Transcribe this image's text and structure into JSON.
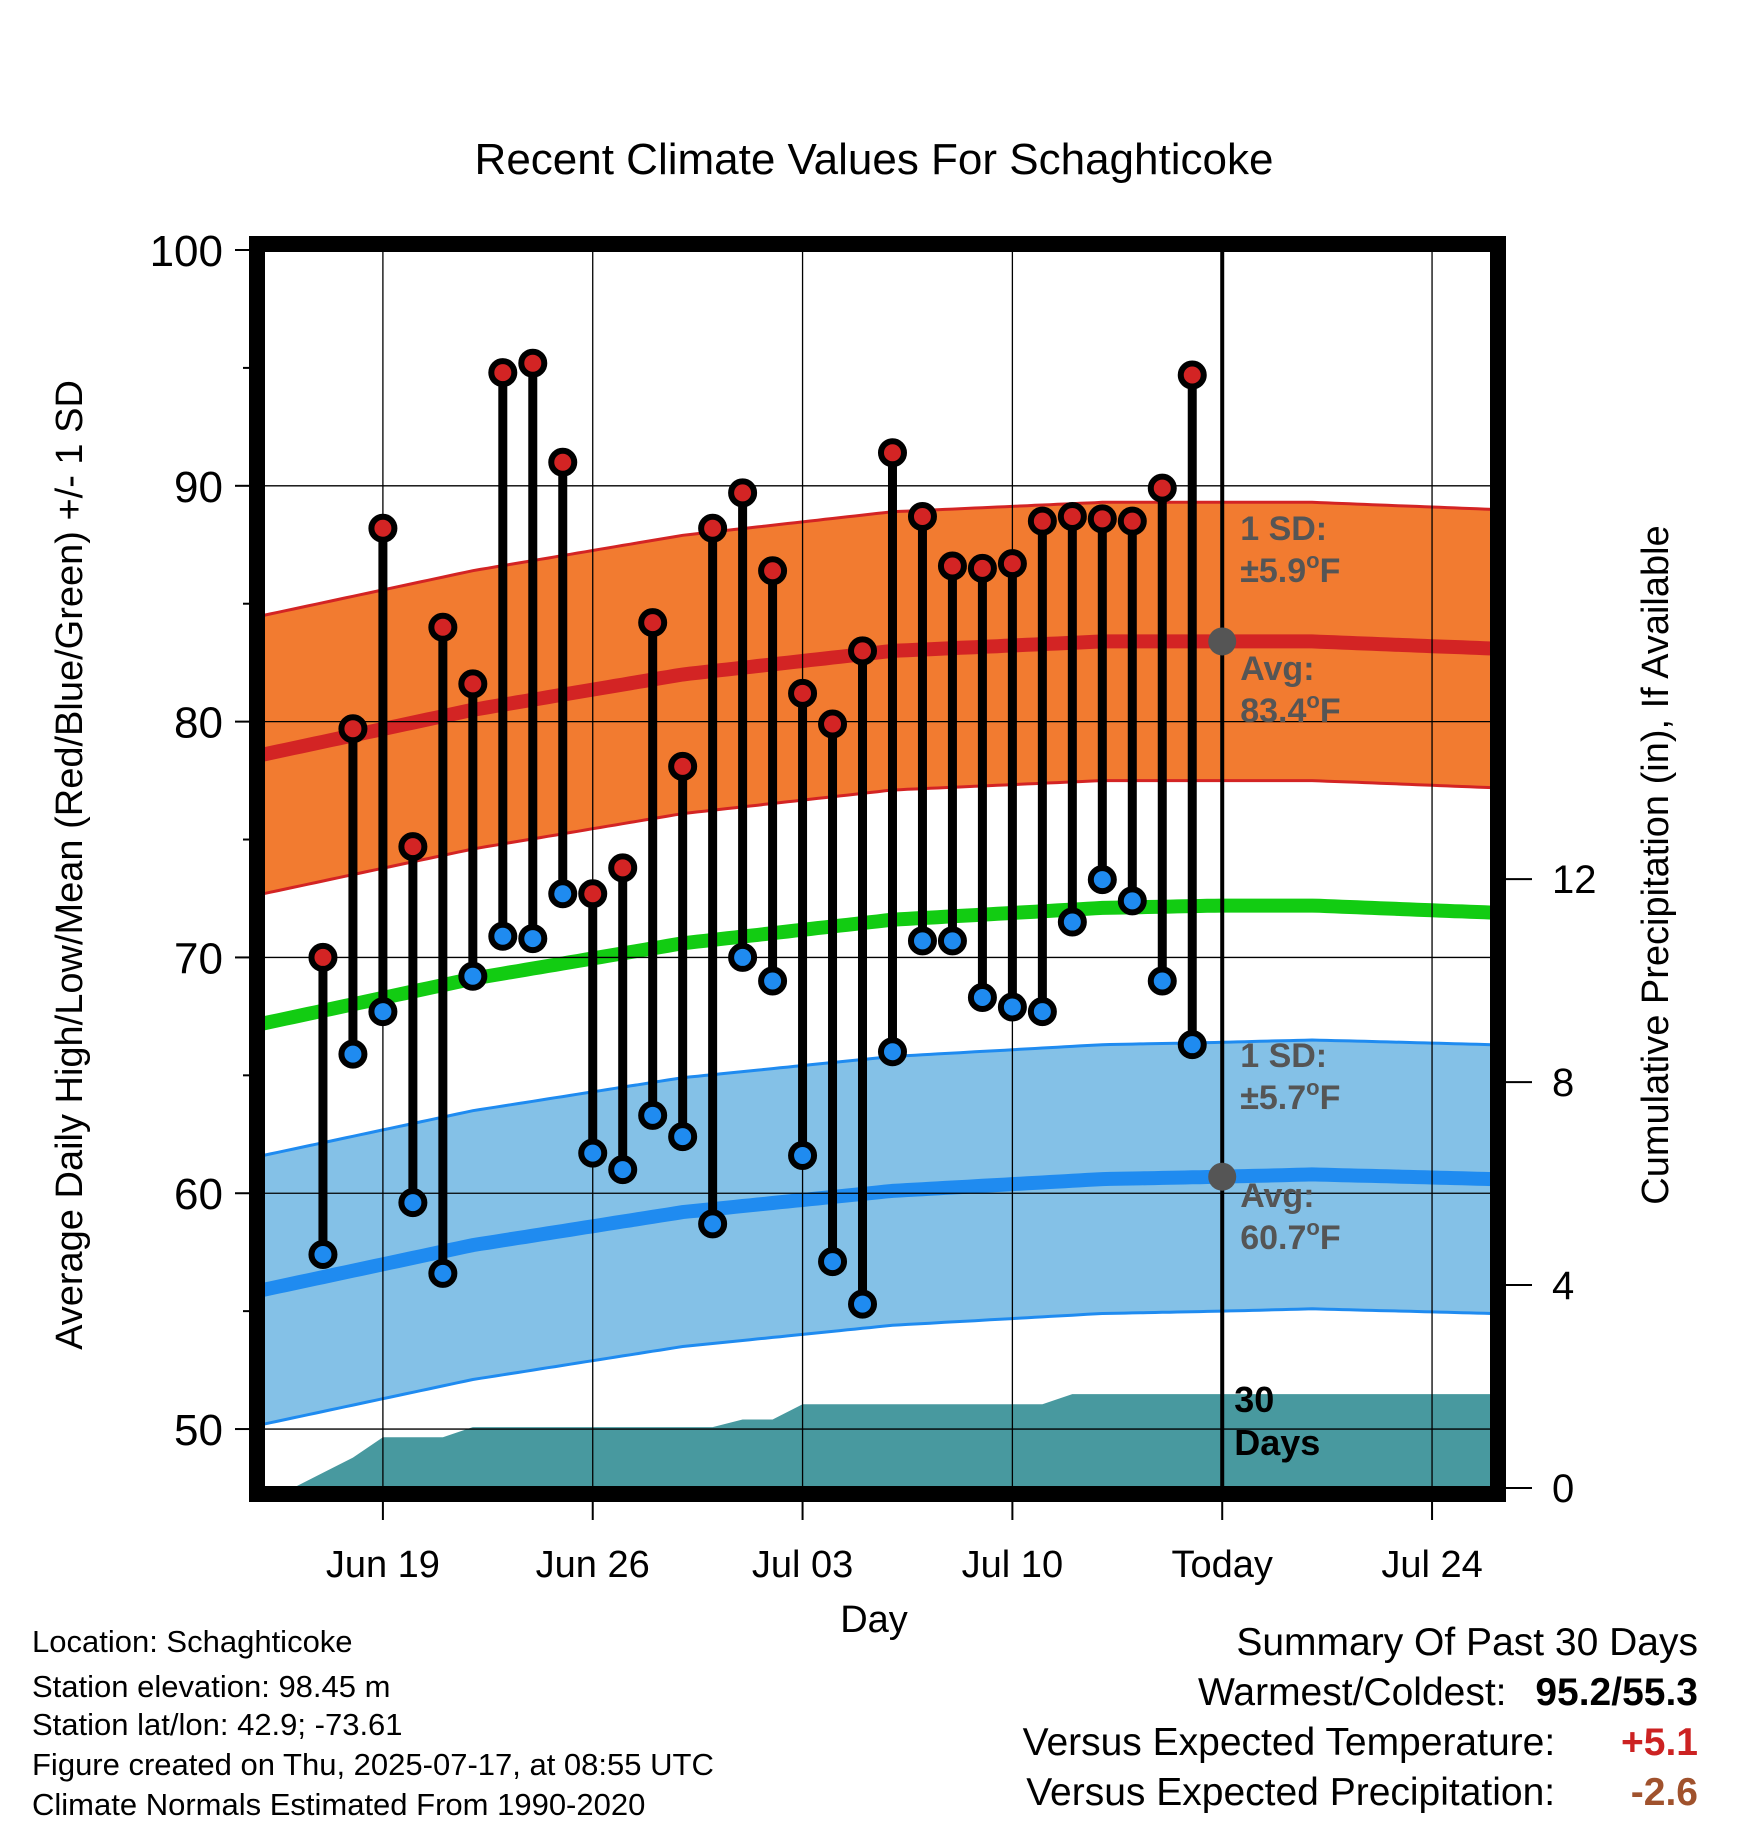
{
  "title": "Recent Climate Values For Schaghticoke",
  "chart_data": {
    "type": "line",
    "title": "Recent Climate Values For Schaghticoke",
    "xlabel": "Day",
    "ylabel": "Average Daily High/Low/Mean (Red/Blue/Green) +/- 1 SD",
    "y2label": "Cumulative Precipitation (in), If Available",
    "ylim": [
      47.5,
      100
    ],
    "y2lim": [
      0,
      24.4
    ],
    "yticks": [
      50,
      60,
      70,
      80,
      90,
      100
    ],
    "y2ticks": [
      0,
      4,
      8,
      12
    ],
    "xlim": [
      "2025-06-15",
      "2025-07-26"
    ],
    "xticks": [
      {
        "date": "2025-06-19",
        "label": "Jun 19"
      },
      {
        "date": "2025-06-26",
        "label": "Jun 26"
      },
      {
        "date": "2025-07-03",
        "label": "Jul 03"
      },
      {
        "date": "2025-07-10",
        "label": "Jul 10"
      },
      {
        "date": "2025-07-17",
        "label": "Today"
      },
      {
        "date": "2025-07-24",
        "label": "Jul 24"
      }
    ],
    "grid": true,
    "today": "2025-07-17",
    "dates": [
      "2025-06-17",
      "2025-06-18",
      "2025-06-19",
      "2025-06-20",
      "2025-06-21",
      "2025-06-22",
      "2025-06-23",
      "2025-06-24",
      "2025-06-25",
      "2025-06-26",
      "2025-06-27",
      "2025-06-28",
      "2025-06-29",
      "2025-06-30",
      "2025-07-01",
      "2025-07-02",
      "2025-07-03",
      "2025-07-04",
      "2025-07-05",
      "2025-07-06",
      "2025-07-07",
      "2025-07-08",
      "2025-07-09",
      "2025-07-10",
      "2025-07-11",
      "2025-07-12",
      "2025-07-13",
      "2025-07-14",
      "2025-07-15",
      "2025-07-16"
    ],
    "series": [
      {
        "name": "High",
        "color": "#cc2222",
        "values": [
          70.0,
          79.7,
          88.2,
          74.7,
          84.0,
          81.6,
          94.8,
          95.2,
          91.0,
          72.7,
          73.8,
          84.2,
          78.1,
          88.2,
          89.7,
          86.4,
          81.2,
          79.9,
          83.0,
          91.4,
          88.7,
          86.6,
          86.5,
          86.7,
          88.5,
          88.7,
          88.6,
          88.5,
          89.9,
          94.7
        ]
      },
      {
        "name": "Low",
        "color": "#2a90ee",
        "values": [
          57.4,
          65.9,
          67.7,
          59.6,
          56.6,
          69.2,
          70.9,
          70.8,
          72.7,
          61.7,
          61.0,
          63.3,
          62.4,
          58.7,
          70.0,
          69.0,
          61.6,
          57.1,
          55.3,
          66.0,
          70.7,
          70.7,
          68.3,
          67.9,
          67.7,
          71.5,
          73.3,
          72.4,
          69.0,
          66.3
        ]
      }
    ],
    "normals": {
      "dates": [
        "2025-06-15",
        "2025-06-22",
        "2025-06-29",
        "2025-07-06",
        "2025-07-13",
        "2025-07-17",
        "2025-07-20",
        "2025-07-26"
      ],
      "high_avg": [
        78.6,
        80.5,
        82.0,
        83.0,
        83.4,
        83.4,
        83.4,
        83.1
      ],
      "high_sd": 5.9,
      "low_avg": [
        55.9,
        57.8,
        59.2,
        60.1,
        60.6,
        60.7,
        60.8,
        60.6
      ],
      "low_sd": 5.7,
      "mean_avg": [
        67.2,
        69.1,
        70.6,
        71.6,
        72.1,
        72.2,
        72.2,
        71.9
      ]
    },
    "precip_cumulative": {
      "dates": [
        "2025-06-15",
        "2025-06-16",
        "2025-06-17",
        "2025-06-18",
        "2025-06-19",
        "2025-06-21",
        "2025-06-22",
        "2025-06-30",
        "2025-07-01",
        "2025-07-02",
        "2025-07-03",
        "2025-07-11",
        "2025-07-12",
        "2025-07-26"
      ],
      "values": [
        0.0,
        0.0,
        0.3,
        0.6,
        1.0,
        1.0,
        1.2,
        1.2,
        1.35,
        1.35,
        1.65,
        1.65,
        1.85,
        1.85
      ]
    },
    "annotations": {
      "high_sd_label": [
        "1 SD:",
        "±5.9",
        "o",
        "F"
      ],
      "high_avg_label": [
        "Avg:",
        "83.4",
        "o",
        "F"
      ],
      "low_sd_label": [
        "1 SD:",
        "±5.7",
        "o",
        "F"
      ],
      "low_avg_label": [
        "Avg:",
        "60.7",
        "o",
        "F"
      ],
      "days_label": [
        "30",
        "Days"
      ]
    },
    "colors": {
      "high_band": "#f27b30",
      "high_line": "#d32424",
      "low_band": "#84c1e7",
      "low_line": "#1f8bf0",
      "mean_line": "#12cc12",
      "precip": "#48999f",
      "annotation": "#555555",
      "marker_dot": "#555555"
    }
  },
  "info": {
    "location": "Location: Schaghticoke",
    "elevation": "Station elevation: 98.45 m",
    "latlon": "Station lat/lon: 42.9; -73.61",
    "created": "Figure created on Thu, 2025-07-17, at 08:55 UTC",
    "normals": "Climate Normals Estimated From 1990-2020"
  },
  "summary": {
    "heading": "Summary Of Past 30 Days",
    "warm_label": "Warmest/Coldest:",
    "warm_value": "95.2/55.3",
    "temp_label": "Versus Expected Temperature:",
    "temp_value": "+5.1",
    "temp_color": "#cc2222",
    "precip_label": "Versus Expected Precipitation:",
    "precip_value": "-2.6",
    "precip_color": "#a0522d"
  }
}
